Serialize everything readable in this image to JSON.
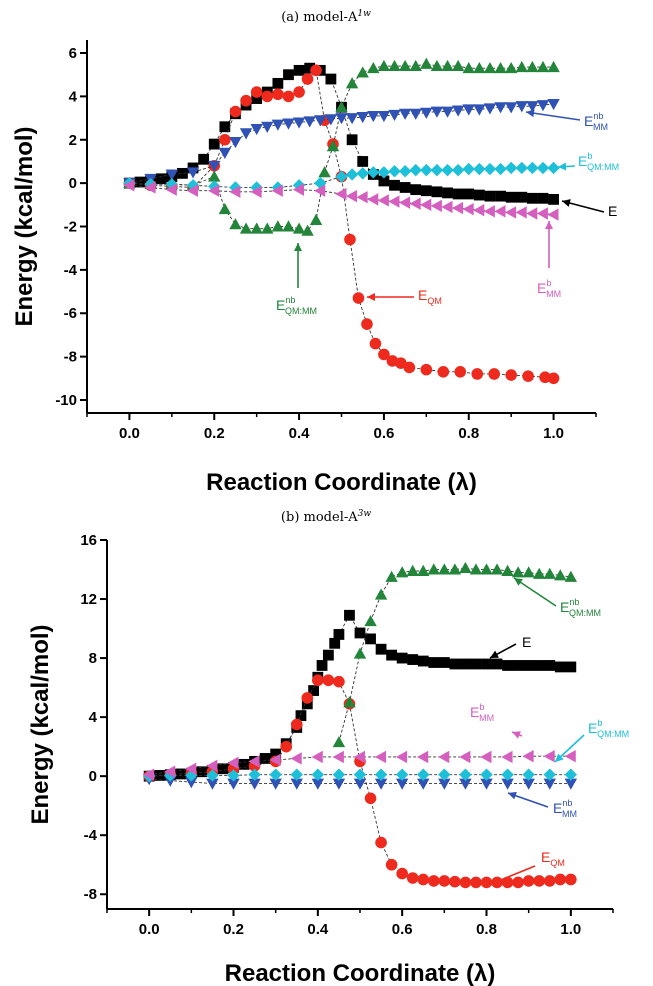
{
  "chart_data": [
    {
      "type": "scatter",
      "title_main": "(a) model-A",
      "title_sup": "1w",
      "xlabel": "Reaction Coordinate (λ)",
      "ylabel": "Energy (kcal/mol)",
      "xlim": [
        -0.1,
        1.1
      ],
      "ylim": [
        -10.6,
        6.6
      ],
      "xticks": [
        "0.0",
        "0.2",
        "0.4",
        "0.6",
        "0.8",
        "1.0"
      ],
      "yticks": [
        "-10",
        "-8",
        "-6",
        "-4",
        "-2",
        "0",
        "2",
        "4",
        "6"
      ],
      "series": [
        {
          "key": "E",
          "marker": "square",
          "color": "#000000",
          "x": [
            0,
            0.025,
            0.05,
            0.075,
            0.1,
            0.125,
            0.15,
            0.175,
            0.2,
            0.225,
            0.25,
            0.275,
            0.3,
            0.325,
            0.35,
            0.375,
            0.4,
            0.425,
            0.45,
            0.475,
            0.5,
            0.525,
            0.55,
            0.575,
            0.6,
            0.625,
            0.65,
            0.675,
            0.7,
            0.725,
            0.75,
            0.775,
            0.8,
            0.825,
            0.85,
            0.875,
            0.9,
            0.925,
            0.95,
            0.975,
            1.0
          ],
          "y": [
            0,
            0.05,
            0.1,
            0.2,
            0.3,
            0.45,
            0.7,
            1.1,
            1.8,
            2.6,
            3.2,
            3.6,
            3.9,
            4.2,
            4.6,
            5.0,
            5.2,
            5.3,
            5.2,
            4.8,
            3.5,
            2.0,
            1.0,
            0.4,
            0.1,
            -0.1,
            -0.2,
            -0.3,
            -0.35,
            -0.4,
            -0.45,
            -0.5,
            -0.5,
            -0.55,
            -0.6,
            -0.6,
            -0.65,
            -0.65,
            -0.7,
            -0.7,
            -0.75
          ]
        },
        {
          "key": "E_QM",
          "marker": "circle",
          "color": "#ee2a1e",
          "x": [
            0,
            0.05,
            0.1,
            0.15,
            0.2,
            0.225,
            0.25,
            0.275,
            0.3,
            0.325,
            0.35,
            0.375,
            0.4,
            0.42,
            0.44,
            0.46,
            0.48,
            0.5,
            0.52,
            0.54,
            0.56,
            0.58,
            0.6,
            0.62,
            0.64,
            0.66,
            0.7,
            0.74,
            0.78,
            0.82,
            0.86,
            0.9,
            0.94,
            0.98,
            1.0
          ],
          "y": [
            0,
            -0.1,
            -0.15,
            -0.2,
            0.8,
            2.0,
            3.3,
            3.8,
            4.2,
            4.0,
            4.1,
            4.0,
            4.2,
            4.8,
            5.2,
            2.9,
            1.8,
            0.3,
            -2.6,
            -5.3,
            -6.5,
            -7.4,
            -7.9,
            -8.2,
            -8.3,
            -8.5,
            -8.6,
            -8.7,
            -8.7,
            -8.8,
            -8.8,
            -8.85,
            -8.9,
            -8.95,
            -9.0
          ]
        },
        {
          "key": "E_nb_QMMM",
          "marker": "triangle-up",
          "color": "#23853a",
          "x": [
            0,
            0.05,
            0.1,
            0.15,
            0.2,
            0.225,
            0.25,
            0.275,
            0.3,
            0.325,
            0.35,
            0.375,
            0.4,
            0.42,
            0.44,
            0.46,
            0.48,
            0.5,
            0.525,
            0.55,
            0.575,
            0.6,
            0.625,
            0.65,
            0.675,
            0.7,
            0.725,
            0.75,
            0.775,
            0.8,
            0.825,
            0.85,
            0.875,
            0.9,
            0.925,
            0.95,
            0.975,
            1.0
          ],
          "y": [
            0,
            -0.05,
            -0.05,
            -0.1,
            0.3,
            -1.2,
            -1.9,
            -2.1,
            -2.1,
            -2.1,
            -2.0,
            -2.0,
            -2.1,
            -2.2,
            -1.7,
            0.5,
            1.7,
            3.5,
            4.6,
            5.1,
            5.3,
            5.4,
            5.4,
            5.4,
            5.4,
            5.5,
            5.4,
            5.4,
            5.4,
            5.3,
            5.3,
            5.3,
            5.3,
            5.3,
            5.35,
            5.35,
            5.35,
            5.35
          ]
        },
        {
          "key": "E_nb_MM",
          "marker": "triangle-down",
          "color": "#2f52b4",
          "x": [
            0,
            0.05,
            0.1,
            0.15,
            0.2,
            0.225,
            0.25,
            0.275,
            0.3,
            0.325,
            0.35,
            0.375,
            0.4,
            0.425,
            0.45,
            0.475,
            0.5,
            0.525,
            0.55,
            0.575,
            0.6,
            0.625,
            0.65,
            0.675,
            0.7,
            0.725,
            0.75,
            0.775,
            0.8,
            0.825,
            0.85,
            0.875,
            0.9,
            0.925,
            0.95,
            0.975,
            1.0
          ],
          "y": [
            0,
            0.2,
            0.4,
            0.5,
            0.8,
            1.4,
            1.9,
            2.3,
            2.5,
            2.6,
            2.7,
            2.75,
            2.8,
            2.85,
            2.9,
            2.95,
            3.0,
            3.0,
            3.05,
            3.1,
            3.1,
            3.15,
            3.2,
            3.2,
            3.25,
            3.3,
            3.3,
            3.35,
            3.4,
            3.4,
            3.45,
            3.5,
            3.5,
            3.55,
            3.55,
            3.6,
            3.65
          ]
        },
        {
          "key": "E_b_QMMM",
          "marker": "diamond",
          "color": "#1ec0d9",
          "x": [
            0,
            0.05,
            0.1,
            0.15,
            0.2,
            0.25,
            0.3,
            0.35,
            0.4,
            0.45,
            0.5,
            0.525,
            0.55,
            0.575,
            0.6,
            0.625,
            0.65,
            0.675,
            0.7,
            0.725,
            0.75,
            0.775,
            0.8,
            0.825,
            0.85,
            0.875,
            0.9,
            0.925,
            0.95,
            0.975,
            1.0
          ],
          "y": [
            0,
            -0.05,
            -0.05,
            -0.1,
            -0.15,
            -0.2,
            -0.2,
            -0.2,
            -0.1,
            0.0,
            0.3,
            0.4,
            0.45,
            0.5,
            0.5,
            0.55,
            0.55,
            0.6,
            0.6,
            0.6,
            0.6,
            0.6,
            0.65,
            0.65,
            0.65,
            0.65,
            0.7,
            0.7,
            0.7,
            0.7,
            0.7
          ]
        },
        {
          "key": "E_b_MM",
          "marker": "triangle-left",
          "color": "#d55fbe",
          "x": [
            0,
            0.05,
            0.1,
            0.15,
            0.2,
            0.25,
            0.3,
            0.35,
            0.4,
            0.45,
            0.5,
            0.525,
            0.55,
            0.575,
            0.6,
            0.625,
            0.65,
            0.675,
            0.7,
            0.725,
            0.75,
            0.775,
            0.8,
            0.825,
            0.85,
            0.875,
            0.9,
            0.925,
            0.95,
            0.975,
            1.0
          ],
          "y": [
            -0.1,
            -0.2,
            -0.3,
            -0.35,
            -0.35,
            -0.4,
            -0.4,
            -0.35,
            -0.3,
            -0.35,
            -0.5,
            -0.6,
            -0.65,
            -0.75,
            -0.8,
            -0.85,
            -0.9,
            -0.95,
            -1.0,
            -1.05,
            -1.1,
            -1.15,
            -1.2,
            -1.25,
            -1.3,
            -1.3,
            -1.35,
            -1.35,
            -1.4,
            -1.4,
            -1.45
          ]
        }
      ],
      "annotations": [
        {
          "base": "E",
          "sub": "",
          "sup": "nb",
          "sub2": "MM",
          "color": "#2f52b4"
        },
        {
          "base": "E",
          "sub": "",
          "sup": "b",
          "sub2": "QM:MM",
          "color": "#1ec0d9"
        },
        {
          "base": "E",
          "sub": "",
          "sup": "",
          "sub2": "",
          "color": "#000000"
        },
        {
          "base": "E",
          "sub": "",
          "sup": "nb",
          "sub2": "QM:MM",
          "color": "#23853a"
        },
        {
          "base": "E",
          "sub": "",
          "sup": "",
          "sub2": "QM",
          "color": "#ee2a1e"
        },
        {
          "base": "E",
          "sub": "",
          "sup": "b",
          "sub2": "MM",
          "color": "#d55fbe"
        }
      ]
    },
    {
      "type": "scatter",
      "title_main": "(b) model-A",
      "title_sup": "3w",
      "xlabel": "Reaction Coordinate (λ)",
      "ylabel": "Energy (kcal/mol)",
      "xlim": [
        -0.1,
        1.1
      ],
      "ylim": [
        -9,
        16
      ],
      "xticks": [
        "0.0",
        "0.2",
        "0.4",
        "0.6",
        "0.8",
        "1.0"
      ],
      "yticks": [
        "-8",
        "-4",
        "0",
        "4",
        "8",
        "12",
        "16"
      ],
      "series": [
        {
          "key": "E",
          "marker": "square",
          "color": "#000000",
          "x": [
            0,
            0.025,
            0.05,
            0.075,
            0.1,
            0.125,
            0.15,
            0.175,
            0.2,
            0.225,
            0.25,
            0.275,
            0.3,
            0.325,
            0.35,
            0.36,
            0.375,
            0.39,
            0.4,
            0.41,
            0.425,
            0.44,
            0.45,
            0.475,
            0.5,
            0.525,
            0.55,
            0.575,
            0.6,
            0.625,
            0.65,
            0.675,
            0.7,
            0.725,
            0.75,
            0.775,
            0.8,
            0.825,
            0.85,
            0.875,
            0.9,
            0.925,
            0.95,
            0.975,
            1.0
          ],
          "y": [
            0,
            0.05,
            0.1,
            0.15,
            0.2,
            0.3,
            0.4,
            0.5,
            0.6,
            0.8,
            1.0,
            1.2,
            1.5,
            2.2,
            3.3,
            4.1,
            4.9,
            5.8,
            6.7,
            7.5,
            8.2,
            9.0,
            9.6,
            10.9,
            9.7,
            9.3,
            8.6,
            8.2,
            8.0,
            7.9,
            7.8,
            7.7,
            7.7,
            7.6,
            7.6,
            7.6,
            7.6,
            7.6,
            7.5,
            7.5,
            7.5,
            7.5,
            7.5,
            7.4,
            7.4
          ]
        },
        {
          "key": "E_QM",
          "marker": "circle",
          "color": "#ee2a1e",
          "x": [
            0,
            0.05,
            0.1,
            0.15,
            0.2,
            0.25,
            0.3,
            0.325,
            0.35,
            0.375,
            0.4,
            0.425,
            0.45,
            0.475,
            0.5,
            0.525,
            0.55,
            0.575,
            0.6,
            0.625,
            0.65,
            0.675,
            0.7,
            0.725,
            0.75,
            0.775,
            0.8,
            0.825,
            0.85,
            0.875,
            0.9,
            0.925,
            0.95,
            0.975,
            1.0
          ],
          "y": [
            0,
            0.1,
            0.2,
            0.3,
            0.5,
            0.7,
            1.0,
            2.0,
            3.5,
            5.3,
            6.5,
            6.5,
            6.4,
            4.9,
            1.0,
            -1.5,
            -4.5,
            -6.0,
            -6.6,
            -6.9,
            -7.0,
            -7.1,
            -7.1,
            -7.15,
            -7.2,
            -7.2,
            -7.2,
            -7.2,
            -7.2,
            -7.2,
            -7.1,
            -7.1,
            -7.1,
            -7.0,
            -7.0
          ]
        },
        {
          "key": "E_nb_QMMM",
          "marker": "triangle-up",
          "color": "#23853a",
          "x": [
            0.45,
            0.475,
            0.5,
            0.525,
            0.55,
            0.575,
            0.6,
            0.625,
            0.65,
            0.675,
            0.7,
            0.725,
            0.75,
            0.775,
            0.8,
            0.825,
            0.85,
            0.875,
            0.9,
            0.925,
            0.95,
            0.975,
            1.0
          ],
          "y": [
            2.3,
            5.0,
            8.3,
            10.5,
            12.3,
            13.5,
            13.8,
            13.9,
            13.9,
            14.0,
            14.0,
            14.0,
            14.1,
            14.0,
            14.0,
            14.0,
            13.9,
            13.8,
            13.8,
            13.7,
            13.7,
            13.6,
            13.5
          ]
        },
        {
          "key": "E_nb_MM",
          "marker": "triangle-down",
          "color": "#2f52b4",
          "x": [
            0,
            0.05,
            0.1,
            0.15,
            0.2,
            0.25,
            0.3,
            0.35,
            0.4,
            0.45,
            0.5,
            0.55,
            0.6,
            0.65,
            0.7,
            0.75,
            0.8,
            0.85,
            0.9,
            0.95,
            1.0
          ],
          "y": [
            -0.2,
            -0.3,
            -0.4,
            -0.5,
            -0.5,
            -0.5,
            -0.5,
            -0.5,
            -0.5,
            -0.5,
            -0.5,
            -0.5,
            -0.5,
            -0.5,
            -0.5,
            -0.5,
            -0.5,
            -0.5,
            -0.5,
            -0.5,
            -0.5
          ]
        },
        {
          "key": "E_b_QMMM",
          "marker": "diamond",
          "color": "#1ec0d9",
          "x": [
            0,
            0.05,
            0.1,
            0.15,
            0.2,
            0.25,
            0.3,
            0.35,
            0.4,
            0.45,
            0.5,
            0.55,
            0.6,
            0.65,
            0.7,
            0.75,
            0.8,
            0.85,
            0.9,
            0.95,
            1.0
          ],
          "y": [
            0,
            0.05,
            0.05,
            0.05,
            0.05,
            0.1,
            0.1,
            0.1,
            0.1,
            0.1,
            0.1,
            0.1,
            0.1,
            0.1,
            0.1,
            0.1,
            0.1,
            0.1,
            0.1,
            0.1,
            0.1
          ]
        },
        {
          "key": "E_b_MM",
          "marker": "triangle-left",
          "color": "#d55fbe",
          "x": [
            0,
            0.05,
            0.1,
            0.15,
            0.2,
            0.25,
            0.3,
            0.35,
            0.4,
            0.45,
            0.5,
            0.55,
            0.6,
            0.65,
            0.7,
            0.75,
            0.8,
            0.85,
            0.9,
            0.95,
            1.0
          ],
          "y": [
            0.1,
            0.3,
            0.5,
            0.7,
            0.9,
            1.0,
            1.1,
            1.2,
            1.3,
            1.3,
            1.3,
            1.3,
            1.3,
            1.3,
            1.3,
            1.3,
            1.3,
            1.3,
            1.35,
            1.35,
            1.35
          ]
        }
      ],
      "annotations": [
        {
          "base": "E",
          "sub": "",
          "sup": "nb",
          "sub2": "QM:MM",
          "color": "#23853a"
        },
        {
          "base": "E",
          "sub": "",
          "sup": "",
          "sub2": "",
          "color": "#000000"
        },
        {
          "base": "E",
          "sub": "",
          "sup": "b",
          "sub2": "MM",
          "color": "#d55fbe"
        },
        {
          "base": "E",
          "sub": "",
          "sup": "b",
          "sub2": "QM:MM",
          "color": "#1ec0d9"
        },
        {
          "base": "E",
          "sub": "",
          "sup": "nb",
          "sub2": "MM",
          "color": "#2f52b4"
        },
        {
          "base": "E",
          "sub": "",
          "sup": "",
          "sub2": "QM",
          "color": "#ee2a1e"
        }
      ]
    }
  ]
}
